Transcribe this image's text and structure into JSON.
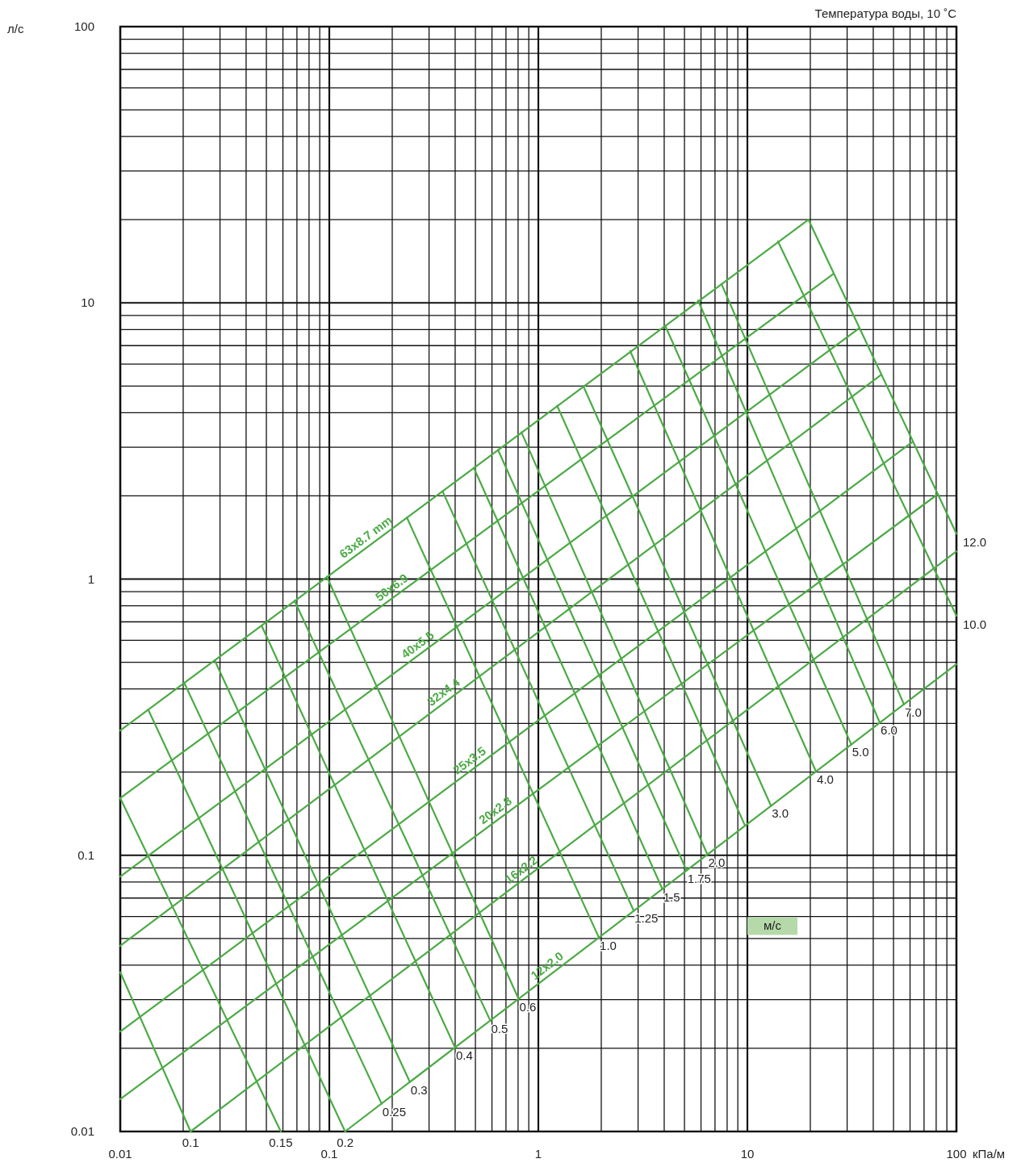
{
  "chart_data": {
    "type": "line",
    "title": "Температура воды, 10 ˚C",
    "xlabel": "кПа/м",
    "ylabel": "л/с",
    "log": "xy",
    "grid": true,
    "xlim": [
      0.01,
      100
    ],
    "ylim": [
      0.01,
      100
    ],
    "xticks": [
      0.01,
      {
        "value": 0.02,
        "label": null
      },
      {
        "value": 0.03,
        "label": null
      },
      {
        "value": 0.04,
        "label": null
      },
      {
        "value": 0.05,
        "label": null
      },
      {
        "value": 0.06,
        "label": null
      },
      {
        "value": 0.07,
        "label": null
      },
      {
        "value": 0.08,
        "label": null
      },
      {
        "value": 0.09,
        "label": null
      },
      0.1,
      {
        "value": 0.2,
        "label": null
      },
      {
        "value": 0.3,
        "label": null
      },
      {
        "value": 0.4,
        "label": null
      },
      {
        "value": 0.5,
        "label": null
      },
      {
        "value": 0.6,
        "label": null
      },
      {
        "value": 0.7,
        "label": null
      },
      {
        "value": 0.8,
        "label": null
      },
      {
        "value": 0.9,
        "label": null
      },
      1,
      {
        "value": 2,
        "label": null
      },
      {
        "value": 3,
        "label": null
      },
      {
        "value": 4,
        "label": null
      },
      {
        "value": 5,
        "label": null
      },
      {
        "value": 6,
        "label": null
      },
      {
        "value": 7,
        "label": null
      },
      {
        "value": 8,
        "label": null
      },
      {
        "value": 9,
        "label": null
      },
      10,
      {
        "value": 20,
        "label": null
      },
      {
        "value": 30,
        "label": null
      },
      {
        "value": 40,
        "label": null
      },
      {
        "value": 50,
        "label": null
      },
      {
        "value": 60,
        "label": null
      },
      {
        "value": 70,
        "label": null
      },
      {
        "value": 80,
        "label": null
      },
      {
        "value": 90,
        "label": null
      },
      100
    ],
    "yticks": [
      0.01,
      {
        "value": 0.02,
        "label": null
      },
      {
        "value": 0.03,
        "label": null
      },
      {
        "value": 0.04,
        "label": null
      },
      {
        "value": 0.05,
        "label": null
      },
      {
        "value": 0.06,
        "label": null
      },
      {
        "value": 0.07,
        "label": null
      },
      {
        "value": 0.08,
        "label": null
      },
      {
        "value": 0.09,
        "label": null
      },
      0.1,
      {
        "value": 0.2,
        "label": null
      },
      {
        "value": 0.3,
        "label": null
      },
      {
        "value": 0.4,
        "label": null
      },
      {
        "value": 0.5,
        "label": null
      },
      {
        "value": 0.6,
        "label": null
      },
      {
        "value": 0.7,
        "label": null
      },
      {
        "value": 0.8,
        "label": null
      },
      {
        "value": 0.9,
        "label": null
      },
      1,
      {
        "value": 2,
        "label": null
      },
      {
        "value": 3,
        "label": null
      },
      {
        "value": 4,
        "label": null
      },
      {
        "value": 5,
        "label": null
      },
      {
        "value": 6,
        "label": null
      },
      {
        "value": 7,
        "label": null
      },
      {
        "value": 8,
        "label": null
      },
      {
        "value": 9,
        "label": null
      },
      10,
      {
        "value": 20,
        "label": null
      },
      {
        "value": 30,
        "label": null
      },
      {
        "value": 40,
        "label": null
      },
      {
        "value": 50,
        "label": null
      },
      {
        "value": 60,
        "label": null
      },
      {
        "value": 70,
        "label": null
      },
      {
        "value": 80,
        "label": null
      },
      {
        "value": 90,
        "label": null
      },
      100
    ],
    "annotations": [
      "м/с"
    ],
    "series": [
      {
        "name": "63x8.7 mm",
        "color": "#4caa46",
        "x": [
          0.01,
          19.6
        ],
        "values": [
          0.283,
          20.0
        ]
      },
      {
        "name": "50x6.9",
        "color": "#4caa46",
        "x": [
          0.01,
          25.7
        ],
        "values": [
          0.161,
          12.7
        ]
      },
      {
        "name": "40x5.5",
        "color": "#4caa46",
        "x": [
          0.01,
          34.1
        ],
        "values": [
          0.0838,
          8.07
        ]
      },
      {
        "name": "32x4.4",
        "color": "#4caa46",
        "x": [
          0.01,
          43.4
        ],
        "values": [
          0.047,
          5.47
        ]
      },
      {
        "name": "25x3.5",
        "color": "#4caa46",
        "x": [
          0.01,
          61.4
        ],
        "values": [
          0.023,
          3.13
        ]
      },
      {
        "name": "20x2.8",
        "color": "#4caa46",
        "x": [
          0.01,
          81.5
        ],
        "values": [
          0.0131,
          2.03
        ]
      },
      {
        "name": "16x2.2",
        "color": "#4caa46",
        "x": [
          0.0217,
          100
        ],
        "values": [
          0.01,
          1.26
        ]
      },
      {
        "name": "12x2.0",
        "color": "#4caa46",
        "x": [
          0.119,
          100
        ],
        "values": [
          0.01,
          0.492
        ]
      },
      {
        "name": "0.1",
        "color": "#4caa46",
        "x": [
          0.01,
          0.0217
        ],
        "values": [
          0.0377,
          0.01
        ]
      },
      {
        "name": "0.15",
        "color": "#4caa46",
        "x": [
          0.01,
          0.0586
        ],
        "values": [
          0.161,
          0.01
        ]
      },
      {
        "name": "0.2",
        "color": "#4caa46",
        "x": [
          0.0136,
          0.119
        ],
        "values": [
          0.337,
          0.01
        ]
      },
      {
        "name": "0.25",
        "color": "#4caa46",
        "x": [
          0.0202,
          0.178
        ],
        "values": [
          0.422,
          0.0126
        ]
      },
      {
        "name": "0.3",
        "color": "#4caa46",
        "x": [
          0.0283,
          0.243
        ],
        "values": [
          0.508,
          0.0151
        ]
      },
      {
        "name": "0.4",
        "color": "#4caa46",
        "x": [
          0.0474,
          0.4
        ],
        "values": [
          0.679,
          0.0201
        ]
      },
      {
        "name": "0.5",
        "color": "#4caa46",
        "x": [
          0.0682,
          0.589
        ],
        "values": [
          0.834,
          0.0252
        ]
      },
      {
        "name": "0.6",
        "color": "#4caa46",
        "x": [
          0.0973,
          0.805
        ],
        "values": [
          1.02,
          0.0302
        ]
      },
      {
        "name": "1.0",
        "color": "#4caa46",
        "x": [
          0.235,
          1.95
        ],
        "values": [
          1.67,
          0.0503
        ]
      },
      {
        "name": "1.25",
        "color": "#4caa46",
        "x": [
          0.348,
          2.86
        ],
        "values": [
          2.08,
          0.063
        ]
      },
      {
        "name": "1.5",
        "color": "#4caa46",
        "x": [
          0.491,
          3.92
        ],
        "values": [
          2.53,
          0.0755
        ]
      },
      {
        "name": "1.75",
        "color": "#4caa46",
        "x": [
          0.641,
          5.12
        ],
        "values": [
          2.94,
          0.0881
        ]
      },
      {
        "name": "2.0",
        "color": "#4caa46",
        "x": [
          0.83,
          6.44
        ],
        "values": [
          3.4,
          0.1007
        ]
      },
      {
        "color": "#4caa46",
        "x": [
          1.23,
          9.7
        ],
        "values": [
          4.24,
          0.129
        ]
      },
      {
        "name": "3.0",
        "color": "#4caa46",
        "x": [
          1.64,
          12.97
        ],
        "values": [
          5.0,
          0.151
        ]
      },
      {
        "name": "4.0",
        "color": "#4caa46",
        "x": [
          2.75,
          21.3
        ],
        "values": [
          6.69,
          0.201
        ]
      },
      {
        "name": "5.0",
        "color": "#4caa46",
        "x": [
          4.04,
          31.4
        ],
        "values": [
          8.28,
          0.252
        ]
      },
      {
        "name": "6.0",
        "color": "#4caa46",
        "x": [
          5.81,
          43.0
        ],
        "values": [
          10.2,
          0.302
        ]
      },
      {
        "name": "7.0",
        "color": "#4caa46",
        "x": [
          7.52,
          56.1
        ],
        "values": [
          11.7,
          0.352
        ]
      },
      {
        "name": "10.0",
        "color": "#4caa46",
        "x": [
          14.0,
          100
        ],
        "values": [
          16.7,
          0.736
        ]
      },
      {
        "name": "12.0",
        "color": "#4caa46",
        "x": [
          19.6,
          100
        ],
        "values": [
          20.0,
          1.46
        ]
      }
    ]
  }
}
